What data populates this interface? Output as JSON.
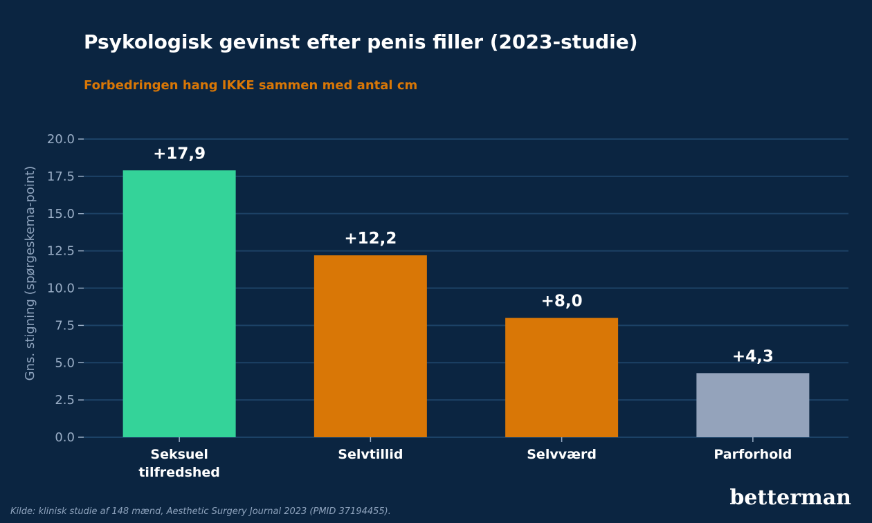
{
  "chart_data": {
    "type": "bar",
    "title": "Psykologisk gevinst efter penis filler (2023-studie)",
    "subtitle": "Forbedringen hang IKKE sammen med antal cm",
    "ylabel": "Gns. stigning (spørgeskema-point)",
    "xlabel": "",
    "ylim": [
      0,
      20
    ],
    "yticks": [
      "0.0",
      "2.5",
      "5.0",
      "7.5",
      "10.0",
      "12.5",
      "15.0",
      "17.5",
      "20.0"
    ],
    "grid": true,
    "categories": [
      [
        "Seksuel",
        "tilfredshed"
      ],
      [
        "Selvtillid"
      ],
      [
        "Selvværd"
      ],
      [
        "Parforhold"
      ]
    ],
    "values": [
      17.9,
      12.2,
      8.0,
      4.3
    ],
    "data_labels": [
      "+17,9",
      "+12,2",
      "+8,0",
      "+4,3"
    ]
  },
  "colors": {
    "background": "#0b2541",
    "bars": [
      "#34d399",
      "#d97706",
      "#d97706",
      "#94a3bb"
    ],
    "subtitle": "#d97706",
    "grid": "#1c4266"
  },
  "source": "Kilde: klinisk studie af 148 mænd, Aesthetic Surgery Journal 2023 (PMID 37194455).",
  "logo": "betterman"
}
